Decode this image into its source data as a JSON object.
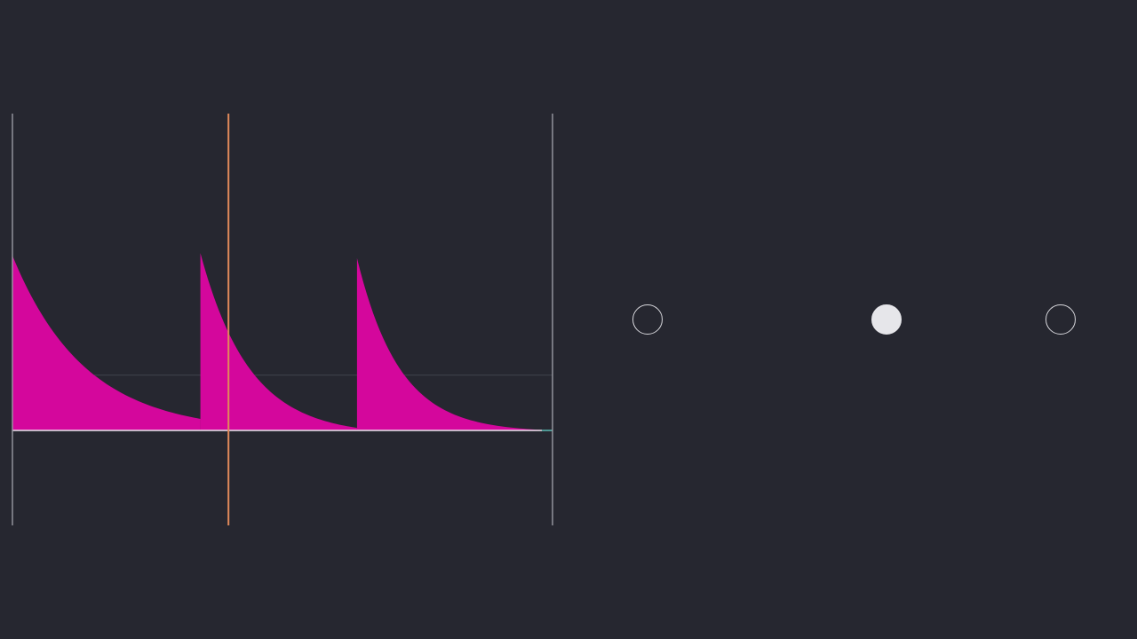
{
  "colors": {
    "background": "#262730",
    "fill": "#d4079c",
    "playhead": "#e0895a",
    "boundary": "#9a9aa4",
    "baseline": "#e8e8ec",
    "baseline_end": "#5fc7c0",
    "midline": "#4a4b55"
  },
  "plot": {
    "type": "area",
    "x_range": [
      0,
      1
    ],
    "y_range": [
      -0.54,
      1
    ],
    "playhead_x": 0.4,
    "segments": [
      {
        "start": 0.0,
        "end": 0.348,
        "peak": 0.68,
        "floor": 0.045,
        "shape": "slow-decay"
      },
      {
        "start": 0.348,
        "end": 0.638,
        "peak": 0.69,
        "floor": 0.01,
        "shape": "medium-decay"
      },
      {
        "start": 0.638,
        "end": 1.0,
        "peak": 0.67,
        "floor": 0.0,
        "shape": "fast-decay"
      }
    ]
  },
  "pager": {
    "count": 3,
    "active_index": 1,
    "dots": [
      {
        "icon": "circle-outline-icon",
        "active": false
      },
      {
        "icon": "circle-filled-icon",
        "active": true
      },
      {
        "icon": "circle-outline-icon",
        "active": false
      }
    ]
  }
}
